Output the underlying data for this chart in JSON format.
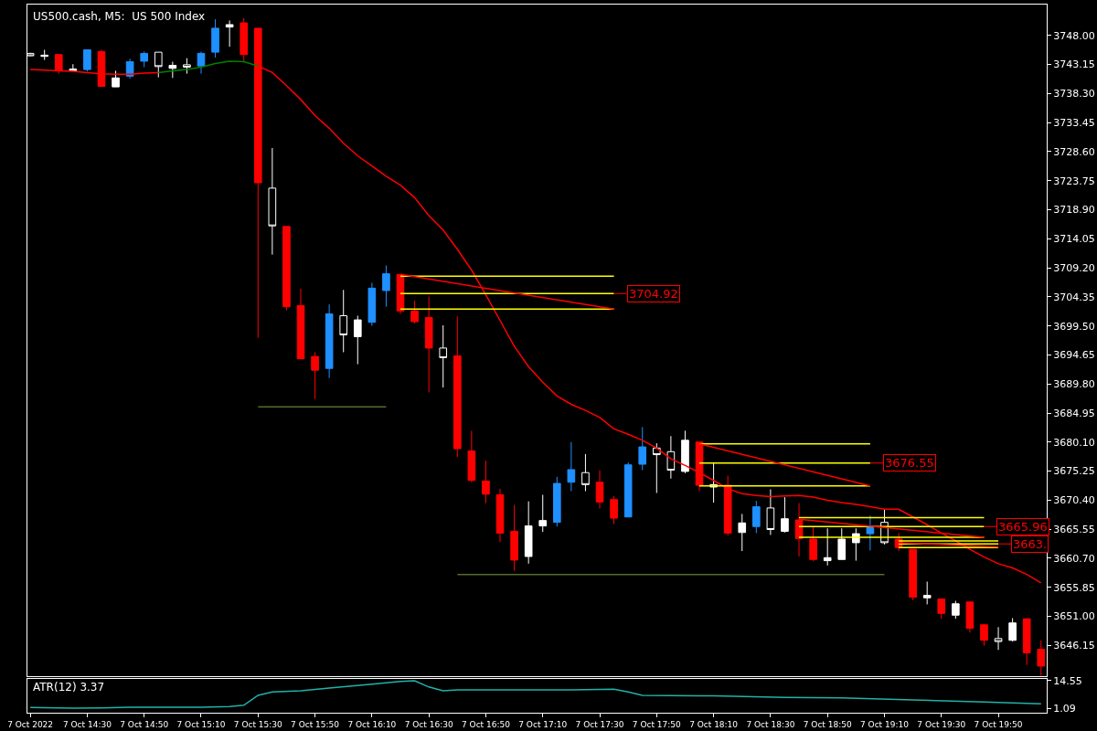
{
  "chart_data": [
    {
      "type": "candlestick",
      "title": "US500.cash, M5:  US 500 Index",
      "x": [
        "2022-10-07T14:10",
        "2022-10-07T14:15",
        "2022-10-07T14:20",
        "2022-10-07T14:25",
        "2022-10-07T14:30",
        "2022-10-07T14:35",
        "2022-10-07T14:40",
        "2022-10-07T14:45",
        "2022-10-07T14:50",
        "2022-10-07T14:55",
        "2022-10-07T15:00",
        "2022-10-07T15:05",
        "2022-10-07T15:10",
        "2022-10-07T15:15",
        "2022-10-07T15:20",
        "2022-10-07T15:25",
        "2022-10-07T15:30",
        "2022-10-07T15:35",
        "2022-10-07T15:40",
        "2022-10-07T15:45",
        "2022-10-07T15:50",
        "2022-10-07T15:55",
        "2022-10-07T16:00",
        "2022-10-07T16:05",
        "2022-10-07T16:10",
        "2022-10-07T16:15",
        "2022-10-07T16:20",
        "2022-10-07T16:25",
        "2022-10-07T16:30",
        "2022-10-07T16:35",
        "2022-10-07T16:40",
        "2022-10-07T16:45",
        "2022-10-07T16:50",
        "2022-10-07T16:55",
        "2022-10-07T17:00",
        "2022-10-07T17:05",
        "2022-10-07T17:10",
        "2022-10-07T17:15",
        "2022-10-07T17:20",
        "2022-10-07T17:25",
        "2022-10-07T17:30",
        "2022-10-07T17:35",
        "2022-10-07T17:40",
        "2022-10-07T17:45",
        "2022-10-07T17:50",
        "2022-10-07T17:55",
        "2022-10-07T18:00",
        "2022-10-07T18:05",
        "2022-10-07T18:10",
        "2022-10-07T18:15",
        "2022-10-07T18:20",
        "2022-10-07T18:25",
        "2022-10-07T18:30",
        "2022-10-07T18:35",
        "2022-10-07T18:40",
        "2022-10-07T18:45",
        "2022-10-07T18:50",
        "2022-10-07T18:55",
        "2022-10-07T19:00",
        "2022-10-07T19:05",
        "2022-10-07T19:10",
        "2022-10-07T19:15",
        "2022-10-07T19:20",
        "2022-10-07T19:25",
        "2022-10-07T19:30",
        "2022-10-07T19:35",
        "2022-10-07T19:40",
        "2022-10-07T19:45",
        "2022-10-07T19:50",
        "2022-10-07T19:55",
        "2022-10-07T20:00",
        "2022-10-07T20:05"
      ],
      "ohlc": [
        [
          3745.0,
          3745.1,
          3744.5,
          3744.6
        ],
        [
          3744.5,
          3745.6,
          3743.9,
          3744.7
        ],
        [
          3744.8,
          3744.8,
          3741.6,
          3742.1
        ],
        [
          3742.4,
          3743.2,
          3742.0,
          3742.1
        ],
        [
          3742.3,
          3745.6,
          3742.0,
          3745.6
        ],
        [
          3745.3,
          3745.6,
          3739.4,
          3739.5
        ],
        [
          3739.4,
          3742.1,
          3739.4,
          3740.9
        ],
        [
          3741.2,
          3744.1,
          3740.8,
          3743.6
        ],
        [
          3743.7,
          3745.3,
          3742.7,
          3745.0
        ],
        [
          3745.2,
          3745.2,
          3741.0,
          3742.8
        ],
        [
          3742.5,
          3743.6,
          3740.9,
          3743.0
        ],
        [
          3743.1,
          3744.2,
          3741.6,
          3742.7
        ],
        [
          3742.9,
          3745.3,
          3741.6,
          3745.0
        ],
        [
          3745.2,
          3750.7,
          3744.3,
          3749.2
        ],
        [
          3749.4,
          3750.5,
          3746.1,
          3749.8
        ],
        [
          3750.1,
          3750.9,
          3743.7,
          3744.8
        ],
        [
          3749.2,
          3749.2,
          3697.5,
          3723.4
        ],
        [
          3722.5,
          3729.2,
          3711.4,
          3716.2
        ],
        [
          3716.1,
          3716.1,
          3702.1,
          3702.7
        ],
        [
          3702.9,
          3705.7,
          3694.0,
          3694.0
        ],
        [
          3694.4,
          3695.1,
          3687.3,
          3692.1
        ],
        [
          3692.4,
          3703.1,
          3690.8,
          3701.5
        ],
        [
          3701.2,
          3705.5,
          3695.1,
          3698.0
        ],
        [
          3697.7,
          3701.2,
          3693.1,
          3700.5
        ],
        [
          3700.1,
          3706.7,
          3699.5,
          3705.8
        ],
        [
          3705.4,
          3709.6,
          3702.7,
          3708.2
        ],
        [
          3708.1,
          3708.1,
          3701.5,
          3702.0
        ],
        [
          3702.0,
          3703.7,
          3699.9,
          3700.2
        ],
        [
          3700.9,
          3704.4,
          3688.4,
          3695.8
        ],
        [
          3695.8,
          3699.6,
          3689.2,
          3694.2
        ],
        [
          3694.5,
          3701.1,
          3677.6,
          3679.0
        ],
        [
          3678.6,
          3682.0,
          3673.4,
          3673.7
        ],
        [
          3673.6,
          3677.0,
          3669.9,
          3671.4
        ],
        [
          3671.3,
          3672.3,
          3663.4,
          3664.9
        ],
        [
          3665.2,
          3669.6,
          3658.6,
          3660.4
        ],
        [
          3661.0,
          3670.2,
          3659.8,
          3666.1
        ],
        [
          3666.1,
          3671.3,
          3665.1,
          3667.0
        ],
        [
          3666.7,
          3674.3,
          3666.0,
          3673.2
        ],
        [
          3673.4,
          3680.1,
          3671.9,
          3675.5
        ],
        [
          3675.0,
          3678.1,
          3671.9,
          3673.0
        ],
        [
          3673.4,
          3675.4,
          3669.0,
          3670.1
        ],
        [
          3670.5,
          3671.1,
          3666.4,
          3667.4
        ],
        [
          3667.6,
          3676.7,
          3667.6,
          3676.3
        ],
        [
          3676.4,
          3682.6,
          3675.4,
          3679.3
        ],
        [
          3679.1,
          3679.9,
          3671.6,
          3678.0
        ],
        [
          3678.5,
          3681.1,
          3674.0,
          3675.4
        ],
        [
          3675.2,
          3682.0,
          3674.9,
          3680.4
        ],
        [
          3680.1,
          3680.1,
          3671.9,
          3672.9
        ],
        [
          3672.6,
          3676.6,
          3670.0,
          3673.0
        ],
        [
          3672.9,
          3674.5,
          3664.5,
          3664.9
        ],
        [
          3665.0,
          3668.1,
          3661.9,
          3666.6
        ],
        [
          3666.0,
          3670.3,
          3664.9,
          3669.3
        ],
        [
          3669.1,
          3672.2,
          3664.6,
          3665.5
        ],
        [
          3665.2,
          3670.9,
          3665.0,
          3667.3
        ],
        [
          3667.1,
          3669.9,
          3661.0,
          3664.0
        ],
        [
          3663.9,
          3666.1,
          3660.2,
          3660.5
        ],
        [
          3660.3,
          3665.7,
          3659.5,
          3660.8
        ],
        [
          3660.5,
          3665.7,
          3660.5,
          3663.9
        ],
        [
          3663.3,
          3665.7,
          3660.3,
          3664.8
        ],
        [
          3664.8,
          3667.8,
          3662.0,
          3666.1
        ],
        [
          3666.7,
          3668.8,
          3663.0,
          3663.3
        ],
        [
          3663.9,
          3664.9,
          3661.9,
          3662.5
        ],
        [
          3662.2,
          3662.2,
          3653.7,
          3654.2
        ],
        [
          3654.1,
          3656.8,
          3653.0,
          3654.5
        ],
        [
          3653.9,
          3653.9,
          3650.6,
          3651.5
        ],
        [
          3651.2,
          3653.6,
          3650.6,
          3653.1
        ],
        [
          3653.4,
          3653.4,
          3648.3,
          3649.0
        ],
        [
          3649.6,
          3649.6,
          3646.1,
          3647.0
        ],
        [
          3647.3,
          3649.2,
          3645.4,
          3646.8
        ],
        [
          3647.0,
          3650.7,
          3646.8,
          3649.9
        ],
        [
          3650.6,
          3650.6,
          3642.9,
          3644.9
        ],
        [
          3645.5,
          3647.0,
          3641.1,
          3642.7
        ]
      ],
      "colors": [
        "#ffffff",
        "#ffffff",
        "#ff0000",
        "#ffffff",
        "#1e90ff",
        "#ff0000",
        "#ffffff",
        "#1e90ff",
        "#1e90ff",
        "#ffffff",
        "#ffffff",
        "#ffffff",
        "#1e90ff",
        "#1e90ff",
        "#ffffff",
        "#ff0000",
        "#ff0000",
        "#ffffff",
        "#ff0000",
        "#ff0000",
        "#ff0000",
        "#1e90ff",
        "#ffffff",
        "#ffffff",
        "#1e90ff",
        "#1e90ff",
        "#ff0000",
        "#ff0000",
        "#ff0000",
        "#ffffff",
        "#ff0000",
        "#ff0000",
        "#ff0000",
        "#ff0000",
        "#ff0000",
        "#ffffff",
        "#ffffff",
        "#1e90ff",
        "#1e90ff",
        "#ffffff",
        "#ff0000",
        "#ff0000",
        "#1e90ff",
        "#1e90ff",
        "#ffffff",
        "#ffffff",
        "#ffffff",
        "#ff0000",
        "#ffffff",
        "#ff0000",
        "#ffffff",
        "#1e90ff",
        "#ffffff",
        "#ffffff",
        "#ff0000",
        "#ff0000",
        "#ffffff",
        "#ffffff",
        "#ffffff",
        "#1e90ff",
        "#ffffff",
        "#ff0000",
        "#ff0000",
        "#ffffff",
        "#ff0000",
        "#ffffff",
        "#ff0000",
        "#ff0000",
        "#ffffff",
        "#ffffff",
        "#ff0000",
        "#ff0000"
      ],
      "series": [
        {
          "type": "line",
          "color": "#ff0000",
          "x": [
            "2022-10-07T14:10",
            "2022-10-07T14:15",
            "2022-10-07T14:20",
            "2022-10-07T14:25",
            "2022-10-07T14:30",
            "2022-10-07T14:35",
            "2022-10-07T14:40",
            "2022-10-07T14:45",
            "2022-10-07T14:50",
            "2022-10-07T14:55"
          ],
          "values": [
            3742.3,
            3742.2,
            3742.1,
            3742.0,
            3741.8,
            3741.6,
            3741.5,
            3741.5,
            3741.7,
            3741.8
          ]
        },
        {
          "type": "line",
          "color": "#008000",
          "x": [
            "2022-10-07T14:55",
            "2022-10-07T15:00",
            "2022-10-07T15:05",
            "2022-10-07T15:10",
            "2022-10-07T15:15",
            "2022-10-07T15:20",
            "2022-10-07T15:25",
            "2022-10-07T15:30"
          ],
          "values": [
            3741.8,
            3742.1,
            3742.3,
            3742.7,
            3743.3,
            3743.7,
            3743.6,
            3742.9
          ]
        },
        {
          "type": "line",
          "color": "#ff0000",
          "x": [
            "2022-10-07T15:30",
            "2022-10-07T15:35",
            "2022-10-07T15:40",
            "2022-10-07T15:45",
            "2022-10-07T15:50",
            "2022-10-07T15:55",
            "2022-10-07T16:00",
            "2022-10-07T16:05",
            "2022-10-07T16:10",
            "2022-10-07T16:15",
            "2022-10-07T16:20",
            "2022-10-07T16:25",
            "2022-10-07T16:30",
            "2022-10-07T16:35",
            "2022-10-07T16:40",
            "2022-10-07T16:45",
            "2022-10-07T16:50",
            "2022-10-07T16:55",
            "2022-10-07T17:00",
            "2022-10-07T17:05",
            "2022-10-07T17:10",
            "2022-10-07T17:15",
            "2022-10-07T17:20",
            "2022-10-07T17:25",
            "2022-10-07T17:30",
            "2022-10-07T17:35",
            "2022-10-07T17:40",
            "2022-10-07T17:45",
            "2022-10-07T17:50",
            "2022-10-07T17:55",
            "2022-10-07T18:00",
            "2022-10-07T18:05",
            "2022-10-07T18:10",
            "2022-10-07T18:15",
            "2022-10-07T18:20",
            "2022-10-07T18:25",
            "2022-10-07T18:30",
            "2022-10-07T18:35",
            "2022-10-07T18:40",
            "2022-10-07T18:45",
            "2022-10-07T18:50",
            "2022-10-07T18:55",
            "2022-10-07T19:00",
            "2022-10-07T19:05",
            "2022-10-07T19:10",
            "2022-10-07T19:15",
            "2022-10-07T19:20",
            "2022-10-07T19:25",
            "2022-10-07T19:30",
            "2022-10-07T19:35",
            "2022-10-07T19:40",
            "2022-10-07T19:45",
            "2022-10-07T19:50",
            "2022-10-07T19:55",
            "2022-10-07T20:00",
            "2022-10-07T20:05"
          ],
          "values": [
            3742.9,
            3741.8,
            3739.6,
            3737.3,
            3734.6,
            3732.5,
            3730.0,
            3727.9,
            3726.2,
            3724.5,
            3723.0,
            3720.9,
            3717.9,
            3715.5,
            3712.3,
            3708.8,
            3704.7,
            3700.4,
            3696.1,
            3692.7,
            3690.1,
            3687.8,
            3686.4,
            3685.4,
            3684.2,
            3682.3,
            3681.4,
            3680.4,
            3679.1,
            3677.3,
            3676.2,
            3675.0,
            3673.7,
            3672.3,
            3671.5,
            3671.2,
            3671.0,
            3671.1,
            3671.2,
            3670.9,
            3670.4,
            3670.0,
            3669.7,
            3669.3,
            3668.9,
            3668.9,
            3667.6,
            3666.3,
            3664.9,
            3663.6,
            3662.2,
            3660.9,
            3659.8,
            3659.1,
            3658.0,
            3656.6
          ]
        },
        {
          "type": "line",
          "color": "#ffff00",
          "x": [
            "2022-10-07T16:20",
            "2022-10-07T17:35"
          ],
          "values": [
            3707.8,
            3707.8
          ]
        },
        {
          "type": "line",
          "color": "#ffff00",
          "x": [
            "2022-10-07T16:20",
            "2022-10-07T17:35"
          ],
          "values": [
            3704.9,
            3704.9
          ]
        },
        {
          "type": "line",
          "color": "#ffff00",
          "x": [
            "2022-10-07T16:20",
            "2022-10-07T17:35"
          ],
          "values": [
            3702.3,
            3702.3
          ]
        },
        {
          "type": "line",
          "color": "#ff0000",
          "x": [
            "2022-10-07T16:20",
            "2022-10-07T17:35"
          ],
          "values": [
            3708.1,
            3702.3
          ]
        },
        {
          "type": "line",
          "color": "#ffff00",
          "x": [
            "2022-10-07T18:05",
            "2022-10-07T19:05"
          ],
          "values": [
            3679.8,
            3679.8
          ]
        },
        {
          "type": "line",
          "color": "#ffff00",
          "x": [
            "2022-10-07T18:05",
            "2022-10-07T19:05"
          ],
          "values": [
            3676.6,
            3676.6
          ]
        },
        {
          "type": "line",
          "color": "#ffff00",
          "x": [
            "2022-10-07T18:05",
            "2022-10-07T19:05"
          ],
          "values": [
            3672.8,
            3672.8
          ]
        },
        {
          "type": "line",
          "color": "#ff0000",
          "x": [
            "2022-10-07T18:05",
            "2022-10-07T19:05"
          ],
          "values": [
            3679.8,
            3672.8
          ]
        },
        {
          "type": "line",
          "color": "#ffff00",
          "x": [
            "2022-10-07T18:40",
            "2022-10-07T19:45"
          ],
          "values": [
            3667.5,
            3667.5
          ]
        },
        {
          "type": "line",
          "color": "#ffff00",
          "x": [
            "2022-10-07T18:40",
            "2022-10-07T19:45"
          ],
          "values": [
            3666.0,
            3666.0
          ]
        },
        {
          "type": "line",
          "color": "#ffff00",
          "x": [
            "2022-10-07T18:40",
            "2022-10-07T19:45"
          ],
          "values": [
            3664.2,
            3664.2
          ]
        },
        {
          "type": "line",
          "color": "#ff0000",
          "x": [
            "2022-10-07T18:40",
            "2022-10-07T19:45"
          ],
          "values": [
            3667.2,
            3664.2
          ]
        },
        {
          "type": "line",
          "color": "#ffff00",
          "x": [
            "2022-10-07T19:15",
            "2022-10-07T19:50"
          ],
          "values": [
            3663.6,
            3663.6
          ]
        },
        {
          "type": "line",
          "color": "#ffff00",
          "x": [
            "2022-10-07T19:15",
            "2022-10-07T19:50"
          ],
          "values": [
            3663.1,
            3663.1
          ]
        },
        {
          "type": "line",
          "color": "#ffff00",
          "x": [
            "2022-10-07T19:15",
            "2022-10-07T19:50"
          ],
          "values": [
            3662.5,
            3662.5
          ]
        },
        {
          "type": "line",
          "color": "#ff0000",
          "x": [
            "2022-10-07T19:15",
            "2022-10-07T19:50"
          ],
          "values": [
            3663.3,
            3662.6
          ]
        },
        {
          "type": "line",
          "color": "#556b2f",
          "x": [
            "2022-10-07T15:30",
            "2022-10-07T16:15"
          ],
          "values": [
            3686.0,
            3686.0
          ]
        },
        {
          "type": "line",
          "color": "#556b2f",
          "x": [
            "2022-10-07T16:40",
            "2022-10-07T19:10"
          ],
          "values": [
            3658.0,
            3658.0
          ]
        }
      ],
      "annotations": [
        {
          "text": "3704.92",
          "x": "2022-10-07T17:35",
          "y": 3704.9
        },
        {
          "text": "3676.55",
          "x": "2022-10-07T19:05",
          "y": 3676.6
        },
        {
          "text": "3665.96",
          "x": "2022-10-07T19:45",
          "y": 3666.0
        },
        {
          "text": "3663.",
          "x": "2022-10-07T19:50",
          "y": 3663.1
        }
      ],
      "xlim": [
        "2022-10-07T14:09",
        "2022-10-07T20:07"
      ],
      "ylim": [
        3641.0,
        3753.15
      ],
      "yticks": [
        {
          "value": 3748.0,
          "label": "3748.00"
        },
        3743.15,
        {
          "value": 3738.3,
          "label": "3738.30"
        },
        3733.45,
        {
          "value": 3728.6,
          "label": "3728.60"
        },
        3723.75,
        {
          "value": 3718.9,
          "label": "3718.90"
        },
        3714.05,
        {
          "value": 3709.2,
          "label": "3709.20"
        },
        3704.35,
        {
          "value": 3699.5,
          "label": "3699.50"
        },
        3694.65,
        {
          "value": 3689.8,
          "label": "3689.80"
        },
        3684.95,
        {
          "value": 3680.1,
          "label": "3680.10"
        },
        3675.25,
        {
          "value": 3670.4,
          "label": "3670.40"
        },
        3665.55,
        {
          "value": 3660.7,
          "label": "3660.70"
        },
        3655.85,
        {
          "value": 3651.0,
          "label": "3651.00"
        },
        3646.15
      ],
      "tick_labels": "y"
    },
    {
      "type": "line",
      "title": "ATR(12) 3.37",
      "series": [
        {
          "color": "#20b2aa",
          "x": [
            "2022-10-07T14:10",
            "2022-10-07T14:25",
            "2022-10-07T14:35",
            "2022-10-07T14:45",
            "2022-10-07T15:10",
            "2022-10-07T15:20",
            "2022-10-07T15:25",
            "2022-10-07T15:30",
            "2022-10-07T15:35",
            "2022-10-07T15:45",
            "2022-10-07T15:55",
            "2022-10-07T16:10",
            "2022-10-07T16:20",
            "2022-10-07T16:25",
            "2022-10-07T16:30",
            "2022-10-07T16:35",
            "2022-10-07T16:40",
            "2022-10-07T16:55",
            "2022-10-07T17:20",
            "2022-10-07T17:35",
            "2022-10-07T17:40",
            "2022-10-07T17:45",
            "2022-10-07T18:10",
            "2022-10-07T18:35",
            "2022-10-07T18:55",
            "2022-10-07T19:20",
            "2022-10-07T19:45",
            "2022-10-07T20:05"
          ],
          "values": [
            1.6,
            1.3,
            1.4,
            1.7,
            1.7,
            2.1,
            2.7,
            7.5,
            9.1,
            9.7,
            11.0,
            12.9,
            14.2,
            14.5,
            11.5,
            9.7,
            10.1,
            10.1,
            10.1,
            10.4,
            9.1,
            7.5,
            7.2,
            6.5,
            6.2,
            5.3,
            4.3,
            3.4
          ]
        }
      ],
      "xlim": [
        "2022-10-07T14:09",
        "2022-10-07T20:07"
      ],
      "xticks": [
        {
          "value": "2022-10-07T14:10",
          "label": "7 Oct 2022"
        },
        {
          "value": "2022-10-07T14:30",
          "label": "7 Oct 14:30"
        },
        {
          "value": "2022-10-07T14:50",
          "label": "7 Oct 14:50"
        },
        {
          "value": "2022-10-07T15:10",
          "label": "7 Oct 15:10"
        },
        {
          "value": "2022-10-07T15:30",
          "label": "7 Oct 15:30"
        },
        {
          "value": "2022-10-07T15:50",
          "label": "7 Oct 15:50"
        },
        {
          "value": "2022-10-07T16:10",
          "label": "7 Oct 16:10"
        },
        {
          "value": "2022-10-07T16:30",
          "label": "7 Oct 16:30"
        },
        {
          "value": "2022-10-07T16:50",
          "label": "7 Oct 16:50"
        },
        {
          "value": "2022-10-07T17:10",
          "label": "7 Oct 17:10"
        },
        {
          "value": "2022-10-07T17:30",
          "label": "7 Oct 17:30"
        },
        {
          "value": "2022-10-07T17:50",
          "label": "7 Oct 17:50"
        },
        {
          "value": "2022-10-07T18:10",
          "label": "7 Oct 18:10"
        },
        {
          "value": "2022-10-07T18:30",
          "label": "7 Oct 18:30"
        },
        {
          "value": "2022-10-07T18:50",
          "label": "7 Oct 18:50"
        },
        {
          "value": "2022-10-07T19:10",
          "label": "7 Oct 19:10"
        },
        {
          "value": "2022-10-07T19:30",
          "label": "7 Oct 19:30"
        },
        {
          "value": "2022-10-07T19:50",
          "label": "7 Oct 19:50"
        }
      ],
      "ylim": [
        -0.9,
        15.3
      ],
      "yticks": [
        14.55,
        1.09
      ]
    }
  ]
}
